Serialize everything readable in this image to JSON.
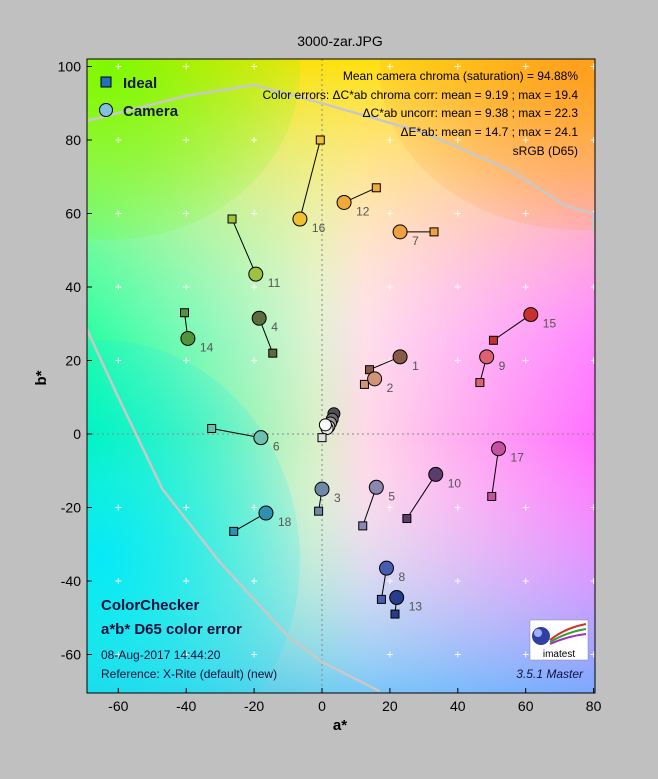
{
  "title": "3000-zar.JPG",
  "chart_data": {
    "type": "scatter",
    "xlabel": "a*",
    "ylabel": "b*",
    "xlim": [
      -70,
      80
    ],
    "ylim": [
      -70,
      102
    ],
    "xticks": [
      -60,
      -40,
      -20,
      0,
      20,
      40,
      60,
      80
    ],
    "yticks": [
      -60,
      -40,
      -20,
      0,
      20,
      40,
      60,
      80,
      100
    ],
    "xtick_labels": [
      "-60",
      "-40",
      "-20",
      "0",
      "20",
      "40",
      "60",
      "80"
    ],
    "ytick_labels": [
      "-60",
      "-40",
      "-20",
      "0",
      "20",
      "40",
      "60",
      "80",
      "100"
    ],
    "series": [
      {
        "name": "Ideal",
        "marker": "square"
      },
      {
        "name": "Camera",
        "marker": "circle"
      }
    ],
    "patches": [
      {
        "id": "1",
        "ideal": [
          14,
          17.5
        ],
        "camera": [
          23,
          21
        ],
        "color": "#8a5a48"
      },
      {
        "id": "2",
        "ideal": [
          12.5,
          13.5
        ],
        "camera": [
          15.5,
          15
        ],
        "color": "#d09478"
      },
      {
        "id": "3",
        "ideal": [
          -1,
          -21
        ],
        "camera": [
          0,
          -15
        ],
        "color": "#7088a6"
      },
      {
        "id": "4",
        "ideal": [
          -14.5,
          22
        ],
        "camera": [
          -18.5,
          31.5
        ],
        "color": "#5c6c3c"
      },
      {
        "id": "5",
        "ideal": [
          12,
          -25
        ],
        "camera": [
          16,
          -14.5
        ],
        "color": "#8c86b0"
      },
      {
        "id": "6",
        "ideal": [
          -32.5,
          1.5
        ],
        "camera": [
          -18,
          -1
        ],
        "color": "#6cc0b0"
      },
      {
        "id": "7",
        "ideal": [
          33,
          55
        ],
        "camera": [
          23,
          55
        ],
        "color": "#f0a040"
      },
      {
        "id": "8",
        "ideal": [
          17.5,
          -45
        ],
        "camera": [
          19,
          -36.5
        ],
        "color": "#4a5cb0"
      },
      {
        "id": "9",
        "ideal": [
          46.5,
          14
        ],
        "camera": [
          48.5,
          21
        ],
        "color": "#e06070"
      },
      {
        "id": "10",
        "ideal": [
          25,
          -23
        ],
        "camera": [
          33.5,
          -11
        ],
        "color": "#5c3c6c"
      },
      {
        "id": "11",
        "ideal": [
          -26.5,
          58.5
        ],
        "camera": [
          -19.5,
          43.5
        ],
        "color": "#a0c040"
      },
      {
        "id": "12",
        "ideal": [
          16,
          67
        ],
        "camera": [
          6.5,
          63
        ],
        "color": "#f0a838"
      },
      {
        "id": "13",
        "ideal": [
          21.5,
          -49
        ],
        "camera": [
          22,
          -44.5
        ],
        "color": "#283c8c"
      },
      {
        "id": "14",
        "ideal": [
          -40.5,
          33
        ],
        "camera": [
          -39.5,
          26
        ],
        "color": "#50943c"
      },
      {
        "id": "15",
        "ideal": [
          50.5,
          25.5
        ],
        "camera": [
          61.5,
          32.5
        ],
        "color": "#c83030"
      },
      {
        "id": "16",
        "ideal": [
          -0.5,
          80
        ],
        "camera": [
          -6.5,
          58.5
        ],
        "color": "#f0c030"
      },
      {
        "id": "17",
        "ideal": [
          50,
          -17
        ],
        "camera": [
          52,
          -4
        ],
        "color": "#c850a0"
      },
      {
        "id": "18",
        "ideal": [
          -26,
          -26.5
        ],
        "camera": [
          -16.5,
          -21.5
        ],
        "color": "#3090b0"
      }
    ],
    "neutrals": [
      {
        "camera": [
          3.5,
          5.5
        ],
        "color": "#505050"
      },
      {
        "camera": [
          3,
          4
        ],
        "color": "#707070"
      },
      {
        "camera": [
          2.5,
          3
        ],
        "color": "#a0a0a0"
      },
      {
        "camera": [
          2,
          2
        ],
        "color": "#c8c8c8"
      },
      {
        "camera": [
          1.5,
          1.5
        ],
        "color": "#e8e8e8"
      },
      {
        "camera": [
          1,
          2.5
        ],
        "color": "#f8f8f8"
      }
    ],
    "gamut_boundary": [
      [
        -70,
        85
      ],
      [
        -40,
        92
      ],
      [
        -20,
        95
      ],
      [
        0,
        90
      ],
      [
        30,
        82
      ],
      [
        55,
        72
      ],
      [
        72,
        62
      ],
      [
        80,
        60
      ],
      [
        80,
        55
      ]
    ],
    "gamut_boundary_lower": [
      [
        -70,
        30
      ],
      [
        -60,
        10
      ],
      [
        -47,
        -15
      ],
      [
        -30,
        -35
      ],
      [
        -10,
        -55
      ],
      [
        0,
        -62
      ],
      [
        17,
        -70
      ]
    ]
  },
  "legend": {
    "ideal": "Ideal",
    "camera": "Camera"
  },
  "info_lines": [
    "Mean camera chroma (saturation) = 94.88%",
    "Color errors: ΔC*ab chroma corr:  mean = 9.19 ;  max = 19.4",
    "ΔC*ab uncorr:  mean = 9.38 ;  max = 22.3",
    "ΔE*ab:  mean = 14.7 ;  max = 24.1",
    "sRGB (D65)"
  ],
  "bottom": {
    "line1": "ColorChecker",
    "line2": "a*b* D65 color error",
    "date": "08-Aug-2017 14:44:20",
    "reference": "Reference: X-Rite (default) (new)",
    "version": "3.5.1  Master",
    "logo_text": "imatest"
  },
  "colors": {
    "background": "#c0c0c0",
    "gamut": "#d0d0d0"
  }
}
